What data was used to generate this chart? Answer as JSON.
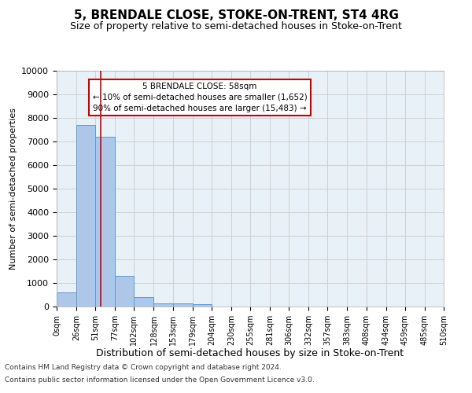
{
  "title": "5, BRENDALE CLOSE, STOKE-ON-TRENT, ST4 4RG",
  "subtitle": "Size of property relative to semi-detached houses in Stoke-on-Trent",
  "xlabel": "Distribution of semi-detached houses by size in Stoke-on-Trent",
  "ylabel": "Number of semi-detached properties",
  "footnote1": "Contains HM Land Registry data © Crown copyright and database right 2024.",
  "footnote2": "Contains public sector information licensed under the Open Government Licence v3.0.",
  "annotation_title": "5 BRENDALE CLOSE: 58sqm",
  "annotation_line1": "← 10% of semi-detached houses are smaller (1,652)",
  "annotation_line2": "90% of semi-detached houses are larger (15,483) →",
  "bar_edges": [
    0,
    26,
    51,
    77,
    102,
    128,
    153,
    179,
    204,
    230,
    255,
    281,
    306,
    332,
    357,
    383,
    408,
    434,
    459,
    485,
    510
  ],
  "bar_heights": [
    600,
    7700,
    7200,
    1300,
    400,
    150,
    130,
    90,
    0,
    0,
    0,
    0,
    0,
    0,
    0,
    0,
    0,
    0,
    0,
    0
  ],
  "bar_color": "#aec6e8",
  "bar_edge_color": "#5b9bd5",
  "grid_color": "#cccccc",
  "bg_color": "#e8f0f8",
  "red_line_x": 58,
  "annotation_box_color": "#ffffff",
  "annotation_box_edge": "#cc0000",
  "ylim": [
    0,
    10000
  ],
  "yticks": [
    0,
    1000,
    2000,
    3000,
    4000,
    5000,
    6000,
    7000,
    8000,
    9000,
    10000
  ]
}
